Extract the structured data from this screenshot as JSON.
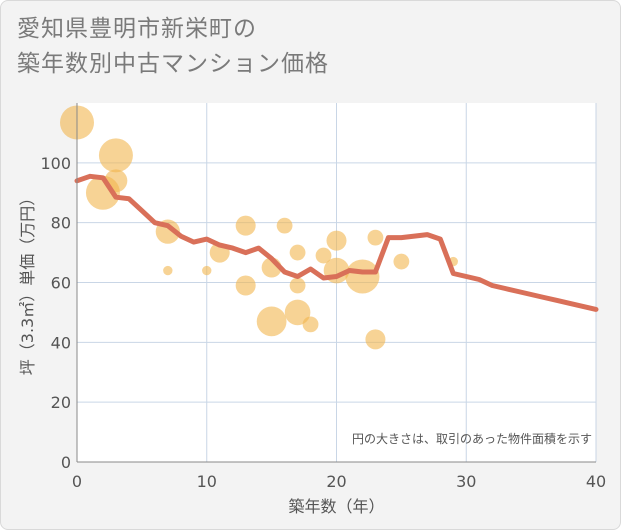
{
  "header": {
    "title_line1": "愛知県豊明市新栄町の",
    "title_line2": "築年数別中古マンション価格"
  },
  "colors": {
    "line": "#d97059",
    "bubble": "#f2b54f",
    "plot_bg": "#ffffff",
    "grid": "#c9d6e6",
    "axis": "#888888"
  },
  "chart_data": {
    "type": "scatter",
    "title": "愛知県豊明市新栄町の築年数別中古マンション価格",
    "xlabel": "築年数（年）",
    "ylabel": "坪（3.3㎡）単価（万円）",
    "xlim": [
      0,
      40
    ],
    "ylim": [
      0,
      120
    ],
    "xticks": [
      0,
      10,
      20,
      30,
      40
    ],
    "yticks": [
      0,
      20,
      40,
      60,
      80,
      100
    ],
    "x_tick_labels": [
      "0",
      "10",
      "20",
      "30",
      "40"
    ],
    "y_tick_labels": [
      "0",
      "20",
      "40",
      "60",
      "80",
      "100"
    ],
    "grid": true,
    "annotation": "円の大きさは、取引のあった物件面積を示す",
    "bubbles": [
      {
        "x": 0,
        "y": 113.5,
        "size": 1.0
      },
      {
        "x": 2,
        "y": 90,
        "size": 1.0
      },
      {
        "x": 3,
        "y": 102.5,
        "size": 1.0
      },
      {
        "x": 3,
        "y": 94,
        "size": 0.6
      },
      {
        "x": 7,
        "y": 77,
        "size": 0.65
      },
      {
        "x": 7,
        "y": 64,
        "size": 0.12
      },
      {
        "x": 10,
        "y": 64,
        "size": 0.12
      },
      {
        "x": 11,
        "y": 70,
        "size": 0.5
      },
      {
        "x": 13,
        "y": 79,
        "size": 0.5
      },
      {
        "x": 13,
        "y": 59,
        "size": 0.5
      },
      {
        "x": 15,
        "y": 65,
        "size": 0.5
      },
      {
        "x": 15,
        "y": 47,
        "size": 0.85
      },
      {
        "x": 16,
        "y": 79,
        "size": 0.35
      },
      {
        "x": 17,
        "y": 70,
        "size": 0.35
      },
      {
        "x": 17,
        "y": 59,
        "size": 0.35
      },
      {
        "x": 17,
        "y": 50,
        "size": 0.7
      },
      {
        "x": 18,
        "y": 46,
        "size": 0.35
      },
      {
        "x": 19,
        "y": 69,
        "size": 0.35
      },
      {
        "x": 20,
        "y": 74,
        "size": 0.5
      },
      {
        "x": 20,
        "y": 64,
        "size": 0.7
      },
      {
        "x": 22,
        "y": 62,
        "size": 1.0
      },
      {
        "x": 23,
        "y": 75,
        "size": 0.35
      },
      {
        "x": 23,
        "y": 41,
        "size": 0.5
      },
      {
        "x": 25,
        "y": 67,
        "size": 0.35
      },
      {
        "x": 29,
        "y": 67,
        "size": 0.12
      }
    ],
    "series": [
      {
        "values_xy": [
          [
            0,
            94
          ],
          [
            1,
            95.5
          ],
          [
            2,
            95
          ],
          [
            3,
            88.5
          ],
          [
            4,
            88
          ],
          [
            5,
            84
          ],
          [
            6,
            80
          ],
          [
            7,
            79
          ],
          [
            8,
            75.5
          ],
          [
            9,
            73.5
          ],
          [
            10,
            74.5
          ],
          [
            11,
            72.5
          ],
          [
            12,
            71.5
          ],
          [
            13,
            70
          ],
          [
            14,
            71.5
          ],
          [
            15,
            68
          ],
          [
            16,
            63.5
          ],
          [
            17,
            62
          ],
          [
            18,
            64.5
          ],
          [
            19,
            61.5
          ],
          [
            20,
            62
          ],
          [
            21,
            64
          ],
          [
            22,
            63.5
          ],
          [
            23,
            63.5
          ],
          [
            24,
            75
          ],
          [
            25,
            75
          ],
          [
            26,
            75.5
          ],
          [
            27,
            76
          ],
          [
            28,
            74.5
          ],
          [
            29,
            63
          ],
          [
            30,
            62
          ],
          [
            31,
            61
          ],
          [
            32,
            59
          ],
          [
            33,
            58
          ],
          [
            34,
            57
          ],
          [
            35,
            56
          ],
          [
            36,
            55
          ],
          [
            37,
            54
          ],
          [
            38,
            53
          ],
          [
            39,
            52
          ],
          [
            40,
            51
          ]
        ]
      }
    ]
  }
}
